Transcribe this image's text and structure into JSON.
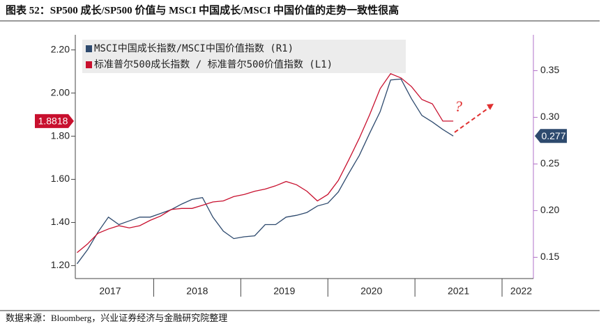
{
  "chart_data": {
    "type": "line",
    "title": "图表 52：SP500 成长/SP500 价值与 MSCI 中国成长/MSCI 中国价值的走势一致性很高",
    "source": "数据来源：Bloomberg，兴业证券经济与金融研究院整理",
    "x": [
      2017.12,
      2017.24,
      2017.36,
      2017.48,
      2017.6,
      2017.72,
      2017.84,
      2017.96,
      2018.08,
      2018.2,
      2018.32,
      2018.44,
      2018.56,
      2018.68,
      2018.8,
      2018.92,
      2019.04,
      2019.16,
      2019.28,
      2019.4,
      2019.52,
      2019.64,
      2019.76,
      2019.88,
      2020.0,
      2020.12,
      2020.24,
      2020.36,
      2020.48,
      2020.6,
      2020.72,
      2020.84,
      2020.96,
      2021.08,
      2021.2,
      2021.32,
      2021.44
    ],
    "xlim": [
      2017.1,
      2022.36
    ],
    "xticks": [
      {
        "value": 2017.5,
        "label": "2017"
      },
      {
        "value": 2018.5,
        "label": "2018"
      },
      {
        "value": 2019.5,
        "label": "2019"
      },
      {
        "value": 2020.5,
        "label": "2020"
      },
      {
        "value": 2021.5,
        "label": "2021"
      },
      {
        "value": 2022.22,
        "label": "2022"
      }
    ],
    "ylim": [
      1.14,
      2.27
    ],
    "yticks": [
      {
        "value": 1.2,
        "label": "1.20"
      },
      {
        "value": 1.4,
        "label": "1.40"
      },
      {
        "value": 1.6,
        "label": "1.60"
      },
      {
        "value": 1.8,
        "label": "1.80"
      },
      {
        "value": 2.0,
        "label": "2.00"
      },
      {
        "value": 2.2,
        "label": "2.20"
      }
    ],
    "y2lim": [
      0.1272,
      0.3884
    ],
    "y2ticks": [
      0.15,
      {
        "value": 0.2,
        "label": "0.20"
      },
      0.25,
      {
        "value": 0.3,
        "label": "0.30"
      },
      0.35
    ],
    "series": [
      {
        "name": "MSCI中国成长指数/MSCI中国价值指数 (R1)",
        "color": "#2e4a6e",
        "axis": "y2",
        "end_label": "0.277",
        "values": [
          0.143,
          0.158,
          0.177,
          0.193,
          0.185,
          0.189,
          0.193,
          0.193,
          0.197,
          0.201,
          0.207,
          0.212,
          0.214,
          0.193,
          0.178,
          0.17,
          0.172,
          0.173,
          0.185,
          0.185,
          0.193,
          0.195,
          0.198,
          0.205,
          0.208,
          0.22,
          0.24,
          0.259,
          0.283,
          0.306,
          0.34,
          0.341,
          0.32,
          0.302,
          0.295,
          0.287,
          0.28
        ]
      },
      {
        "name": "标准普尔500成长指数 / 标准普尔500价值指数 (L1)",
        "color": "#c8102e",
        "axis": "y",
        "end_label": "1.8818",
        "values": [
          1.26,
          1.3,
          1.35,
          1.37,
          1.385,
          1.375,
          1.385,
          1.41,
          1.43,
          1.46,
          1.465,
          1.465,
          1.48,
          1.495,
          1.5,
          1.52,
          1.53,
          1.545,
          1.555,
          1.57,
          1.59,
          1.575,
          1.545,
          1.5,
          1.53,
          1.595,
          1.69,
          1.79,
          1.9,
          2.02,
          2.09,
          2.07,
          2.03,
          1.97,
          1.95,
          1.87,
          1.87
        ]
      }
    ]
  }
}
